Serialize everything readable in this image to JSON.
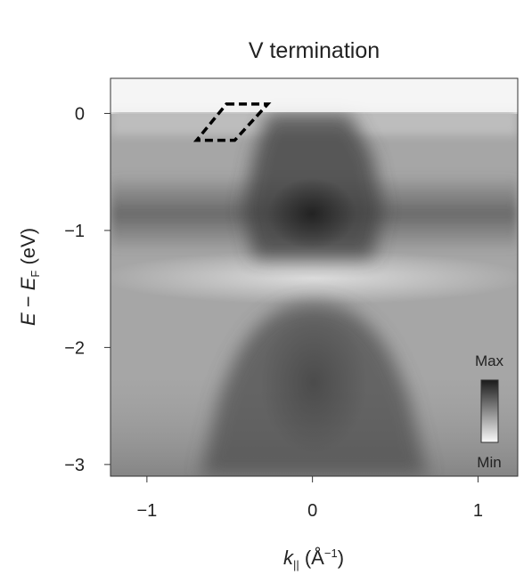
{
  "chart_data": {
    "type": "heatmap",
    "title": "V termination",
    "xlabel": {
      "symbol": "k",
      "sub": "||",
      "open": " (Å",
      "sup": "−1",
      "close": ")"
    },
    "ylabel": {
      "symbol_e": "E",
      "dash": " − ",
      "symbol_ef": "E",
      "sub": "F",
      "unit": " (eV)"
    },
    "xlim": [
      -1.22,
      1.24
    ],
    "ylim": [
      -3.1,
      0.3
    ],
    "xticks": [
      {
        "value": -1,
        "label": "−1"
      },
      {
        "value": 0,
        "label": "0"
      },
      {
        "value": 1,
        "label": "1"
      }
    ],
    "yticks": [
      {
        "value": 0,
        "label": "0"
      },
      {
        "value": -1,
        "label": "−1"
      },
      {
        "value": -2,
        "label": "−2"
      },
      {
        "value": -3,
        "label": "−3"
      }
    ],
    "colorbar": {
      "max_label": "Max",
      "min_label": "Min",
      "colormap": "grayscale",
      "max_color": "#1a1a1a",
      "min_color": "#fafafa"
    },
    "annotation": {
      "shape": "dashed parallelogram",
      "vertices": [
        [
          -0.52,
          0.08
        ],
        [
          -0.27,
          0.08
        ],
        [
          -0.47,
          -0.23
        ],
        [
          -0.7,
          -0.23
        ]
      ]
    },
    "features": [
      {
        "name": "flat band",
        "energy": -0.85,
        "k_range": [
          -1.22,
          1.24
        ]
      },
      {
        "name": "upper hole-like band",
        "apex_energy": 0.0,
        "apex_k_range": [
          -0.15,
          0.22
        ]
      },
      {
        "name": "lower hole-like band",
        "apex_energy": -1.6,
        "k_center": 0.0
      }
    ],
    "grid": false
  }
}
